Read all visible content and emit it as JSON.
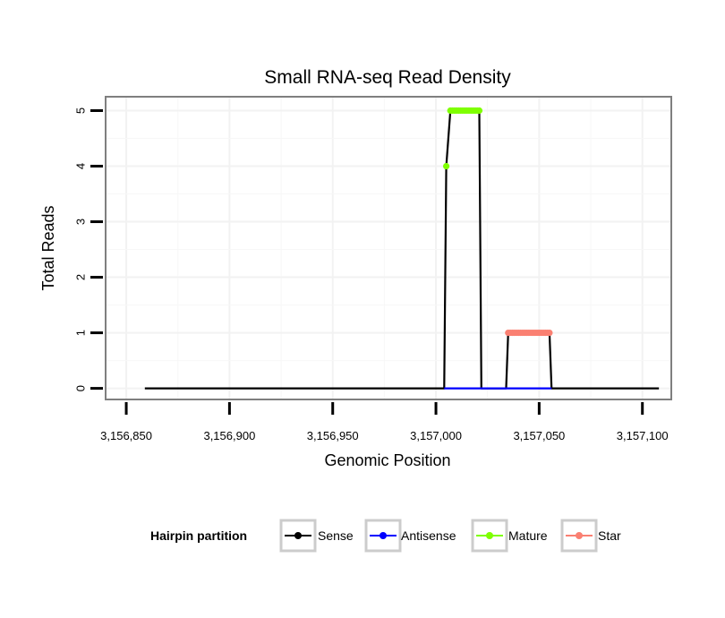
{
  "chart_data": {
    "type": "line",
    "title": "Small RNA-seq Read Density",
    "xlabel": "Genomic Position",
    "ylabel": "Total Reads",
    "xlim": [
      3156840,
      3157114
    ],
    "ylim": [
      -0.2,
      5.25
    ],
    "xticks": [
      3156850,
      3156900,
      3156950,
      3157000,
      3157050,
      3157100
    ],
    "xtick_labels": [
      "3,156,850",
      "3,156,900",
      "3,156,950",
      "3,157,000",
      "3,157,050",
      "3,157,100"
    ],
    "yticks": [
      0,
      1,
      2,
      3,
      4,
      5
    ],
    "ytick_labels": [
      "0",
      "1",
      "2",
      "3",
      "4",
      "5"
    ],
    "grid": true,
    "legend": {
      "title": "Hairpin partition",
      "position": "bottom",
      "items": [
        {
          "name": "Sense",
          "color": "#000000"
        },
        {
          "name": "Antisense",
          "color": "#0000ff"
        },
        {
          "name": "Mature",
          "color": "#7fff00"
        },
        {
          "name": "Star",
          "color": "#fa8072"
        }
      ]
    },
    "series": [
      {
        "name": "Sense",
        "color": "#000000",
        "line_points": [
          [
            3156859,
            0
          ],
          [
            3157004,
            0
          ],
          [
            3157005,
            4
          ],
          [
            3157007,
            5
          ],
          [
            3157021,
            5
          ],
          [
            3157022,
            0
          ],
          [
            3157034,
            0
          ],
          [
            3157035,
            1
          ],
          [
            3157055,
            1
          ],
          [
            3157056,
            0
          ],
          [
            3157108,
            0
          ]
        ],
        "markers": false
      },
      {
        "name": "Antisense",
        "color": "#0000ff",
        "line_points": [
          [
            3157004,
            0
          ],
          [
            3157056,
            0
          ]
        ],
        "markers": false
      },
      {
        "name": "Mature",
        "color": "#7fff00",
        "line_points": [
          [
            3157005,
            4
          ],
          [
            3157007,
            5
          ],
          [
            3157008,
            5
          ],
          [
            3157009,
            5
          ],
          [
            3157010,
            5
          ],
          [
            3157011,
            5
          ],
          [
            3157012,
            5
          ],
          [
            3157013,
            5
          ],
          [
            3157014,
            5
          ],
          [
            3157015,
            5
          ],
          [
            3157016,
            5
          ],
          [
            3157017,
            5
          ],
          [
            3157018,
            5
          ],
          [
            3157019,
            5
          ],
          [
            3157020,
            5
          ],
          [
            3157021,
            5
          ]
        ],
        "markers": true,
        "connect": false
      },
      {
        "name": "Star",
        "color": "#fa8072",
        "line_points": [
          [
            3157035,
            1
          ],
          [
            3157036,
            1
          ],
          [
            3157037,
            1
          ],
          [
            3157038,
            1
          ],
          [
            3157039,
            1
          ],
          [
            3157040,
            1
          ],
          [
            3157041,
            1
          ],
          [
            3157042,
            1
          ],
          [
            3157043,
            1
          ],
          [
            3157044,
            1
          ],
          [
            3157045,
            1
          ],
          [
            3157046,
            1
          ],
          [
            3157047,
            1
          ],
          [
            3157048,
            1
          ],
          [
            3157049,
            1
          ],
          [
            3157050,
            1
          ],
          [
            3157051,
            1
          ],
          [
            3157052,
            1
          ],
          [
            3157053,
            1
          ],
          [
            3157054,
            1
          ],
          [
            3157055,
            1
          ]
        ],
        "markers": true,
        "connect": false
      }
    ]
  }
}
